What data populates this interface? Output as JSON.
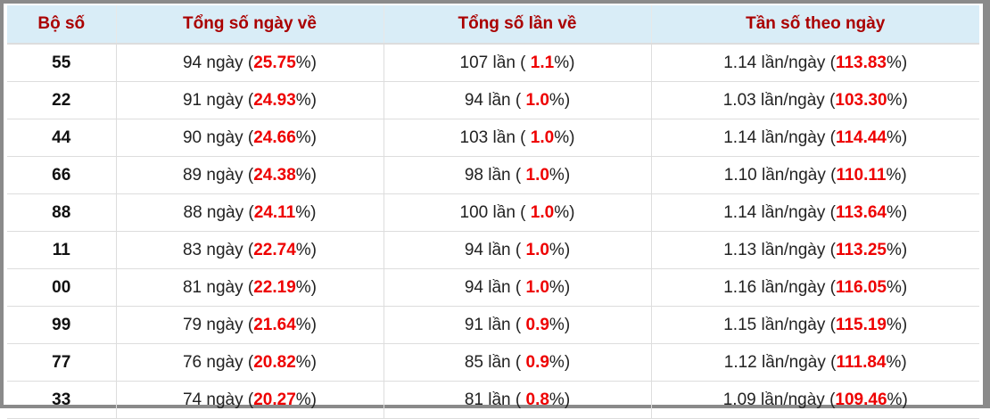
{
  "table": {
    "headers": [
      "Bộ số",
      "Tổng số ngày về",
      "Tổng số lần về",
      "Tần số theo ngày"
    ],
    "rows": [
      [
        "55",
        [
          "94 ngày (",
          "25.75",
          "%)"
        ],
        [
          "107 lần ( ",
          "1.1",
          "%)"
        ],
        [
          "1.14 lần/ngày (",
          "113.83",
          "%)"
        ]
      ],
      [
        "22",
        [
          "91 ngày (",
          "24.93",
          "%)"
        ],
        [
          "94 lần ( ",
          "1.0",
          "%)"
        ],
        [
          "1.03 lần/ngày (",
          "103.30",
          "%)"
        ]
      ],
      [
        "44",
        [
          "90 ngày (",
          "24.66",
          "%)"
        ],
        [
          "103 lần ( ",
          "1.0",
          "%)"
        ],
        [
          "1.14 lần/ngày (",
          "114.44",
          "%)"
        ]
      ],
      [
        "66",
        [
          "89 ngày (",
          "24.38",
          "%)"
        ],
        [
          "98 lần ( ",
          "1.0",
          "%)"
        ],
        [
          "1.10 lần/ngày (",
          "110.11",
          "%)"
        ]
      ],
      [
        "88",
        [
          "88 ngày (",
          "24.11",
          "%)"
        ],
        [
          "100 lần ( ",
          "1.0",
          "%)"
        ],
        [
          "1.14 lần/ngày (",
          "113.64",
          "%)"
        ]
      ],
      [
        "11",
        [
          "83 ngày (",
          "22.74",
          "%)"
        ],
        [
          "94 lần ( ",
          "1.0",
          "%)"
        ],
        [
          "1.13 lần/ngày (",
          "113.25",
          "%)"
        ]
      ],
      [
        "00",
        [
          "81 ngày (",
          "22.19",
          "%)"
        ],
        [
          "94 lần ( ",
          "1.0",
          "%)"
        ],
        [
          "1.16 lần/ngày (",
          "116.05",
          "%)"
        ]
      ],
      [
        "99",
        [
          "79 ngày (",
          "21.64",
          "%)"
        ],
        [
          "91 lần ( ",
          "0.9",
          "%)"
        ],
        [
          "1.15 lần/ngày (",
          "115.19",
          "%)"
        ]
      ],
      [
        "77",
        [
          "76 ngày (",
          "20.82",
          "%)"
        ],
        [
          "85 lần ( ",
          "0.9",
          "%)"
        ],
        [
          "1.12 lần/ngày (",
          "111.84",
          "%)"
        ]
      ],
      [
        "33",
        [
          "74 ngày (",
          "20.27",
          "%)"
        ],
        [
          "81 lần ( ",
          "0.8",
          "%)"
        ],
        [
          "1.09 lần/ngày (",
          "109.46",
          "%)"
        ]
      ]
    ]
  }
}
